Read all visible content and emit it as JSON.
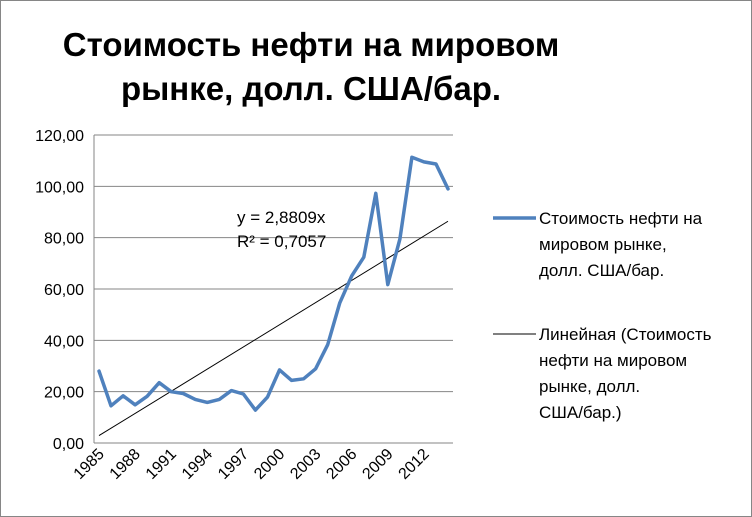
{
  "chart_data": {
    "type": "line",
    "title_lines": [
      "Стоимость нефти  на мировом",
      "рынке, долл. США/бар."
    ],
    "xlabel": "",
    "ylabel": "",
    "ylim": [
      0,
      120
    ],
    "y_ticks": [
      "0,00",
      "20,00",
      "40,00",
      "60,00",
      "80,00",
      "100,00",
      "120,00"
    ],
    "x_tick_labels": [
      "1985",
      "1988",
      "1991",
      "1994",
      "1997",
      "2000",
      "2003",
      "2006",
      "2009",
      "2012"
    ],
    "grid": true,
    "legend_position": "right",
    "x": [
      1985,
      1986,
      1987,
      1988,
      1989,
      1990,
      1991,
      1992,
      1993,
      1994,
      1995,
      1996,
      1997,
      1998,
      1999,
      2000,
      2001,
      2002,
      2003,
      2004,
      2005,
      2006,
      2007,
      2008,
      2009,
      2010,
      2011,
      2012,
      2013,
      2014
    ],
    "series": [
      {
        "name_lines": [
          "Стоимость нефти  на",
          "мировом рынке,",
          "долл. США/бар."
        ],
        "color": "#4F81BD",
        "values": [
          28.0,
          14.5,
          18.4,
          14.9,
          18.2,
          23.5,
          20.0,
          19.3,
          17.0,
          15.8,
          17.0,
          20.4,
          19.1,
          12.8,
          17.9,
          28.5,
          24.4,
          25.0,
          28.9,
          38.3,
          54.5,
          65.1,
          72.4,
          97.3,
          61.7,
          79.5,
          111.3,
          109.5,
          108.7,
          99.0
        ]
      },
      {
        "name_lines": [
          "Линейная (Стоимость",
          "нефти  на мировом",
          "рынке, долл.",
          "США/бар.)"
        ],
        "color": "#000000",
        "type": "trendline",
        "slope": 2.8809,
        "values_from": 2.88,
        "values_to": 86.4
      }
    ],
    "annotations": [
      "y = 2,8809x",
      "R² = 0,7057"
    ]
  }
}
